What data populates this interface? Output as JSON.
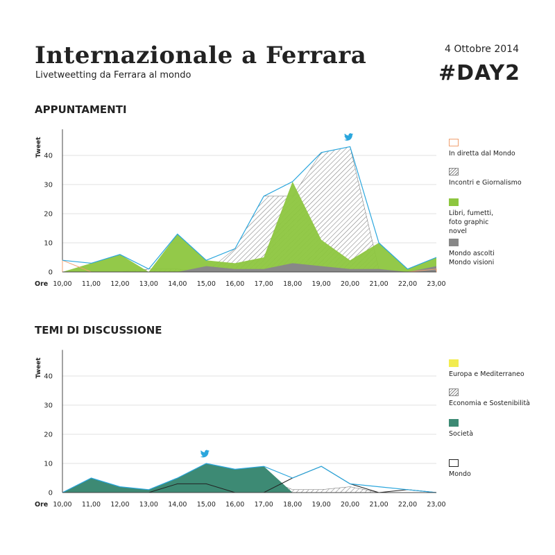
{
  "header": {
    "title": "Internazionale a Ferrara",
    "subtitle": "Livetweetting da Ferrara al mondo",
    "date": "4 Ottobre 2014",
    "tag": "#DAY2"
  },
  "colors": {
    "line": "#2aa6dd",
    "orange": "#f0a070",
    "green": "#8dc63f",
    "gray": "#888888",
    "yellow": "#f2ec50",
    "teal": "#3d8a74",
    "hatch": "#7a7a7a",
    "twitter": "#2aa6dd"
  },
  "chart_data": [
    {
      "type": "area",
      "title": "APPUNTAMENTI",
      "ylabel": "Tweet",
      "xlabel": "Ore",
      "categories": [
        "10,00",
        "11,00",
        "12,00",
        "13,00",
        "14,00",
        "15,00",
        "16,00",
        "17,00",
        "18,00",
        "19,00",
        "20,00",
        "21,00",
        "22,00",
        "23,00"
      ],
      "yticks": [
        0,
        10,
        20,
        30,
        40
      ],
      "ylim": [
        0,
        48
      ],
      "total_line": [
        4,
        3,
        6,
        1,
        13,
        4,
        8,
        26,
        31,
        41,
        43,
        10,
        1,
        5
      ],
      "twitter_icon_at": "20,00",
      "series": [
        {
          "name": "In diretta dal Mondo",
          "style": "outline-orange",
          "values": [
            4,
            0,
            0,
            0,
            0,
            0,
            0,
            0,
            0,
            0,
            0,
            0,
            0,
            1
          ]
        },
        {
          "name": "Incontri e Giornalismo",
          "style": "hatch",
          "values": [
            0,
            0,
            0,
            1,
            1,
            0,
            8,
            26,
            26,
            41,
            43,
            1,
            0,
            1
          ]
        },
        {
          "name": "Libri, fumetti, foto graphic novel",
          "style": "green",
          "values": [
            0,
            3,
            6,
            0,
            13,
            4,
            3,
            5,
            31,
            11,
            4,
            10,
            1,
            5
          ]
        },
        {
          "name": "Mondo ascolti Mondo visioni",
          "style": "gray",
          "values": [
            0,
            0,
            0,
            0,
            0,
            2,
            1,
            1,
            3,
            2,
            1,
            1,
            0,
            2
          ]
        }
      ]
    },
    {
      "type": "area",
      "title": "TEMI DI DISCUSSIONE",
      "ylabel": "Tweet",
      "xlabel": "Ore",
      "categories": [
        "10,00",
        "11,00",
        "12,00",
        "13,00",
        "14,00",
        "15,00",
        "16,00",
        "17,00",
        "18,00",
        "19,00",
        "20,00",
        "21,00",
        "22,00",
        "23,00"
      ],
      "yticks": [
        0,
        10,
        20,
        30,
        40
      ],
      "ylim": [
        0,
        48
      ],
      "total_line": [
        0,
        5,
        2,
        1,
        5,
        10,
        8,
        9,
        5,
        9,
        3,
        2,
        1,
        0
      ],
      "twitter_icon_at": "15,00",
      "series": [
        {
          "name": "Europa e Mediterraneo",
          "style": "yellow",
          "values": [
            0,
            1,
            0,
            1,
            0,
            0,
            0,
            0,
            0,
            0,
            0,
            0,
            0,
            0
          ]
        },
        {
          "name": "Economia e Sostenibilità",
          "style": "hatch",
          "values": [
            0,
            0,
            0,
            1,
            3,
            3,
            1,
            5,
            1,
            1,
            2,
            0,
            0,
            0
          ]
        },
        {
          "name": "Società",
          "style": "teal",
          "values": [
            0,
            5,
            2,
            1,
            5,
            10,
            8,
            9,
            0,
            0,
            0,
            0,
            0,
            0
          ]
        },
        {
          "name": "Mondo",
          "style": "outline-black",
          "values": [
            0,
            0,
            0,
            0,
            3,
            3,
            0,
            0,
            5,
            9,
            3,
            0,
            1,
            0
          ]
        }
      ]
    }
  ]
}
